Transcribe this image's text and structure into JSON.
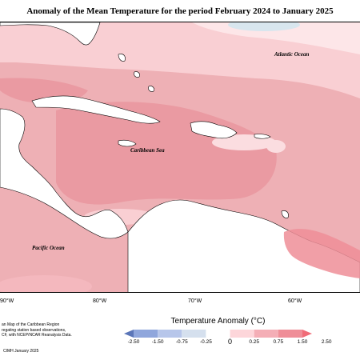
{
  "title": "Anomaly of the Mean Temperature for the period February 2024 to January 2025",
  "map": {
    "oceans": {
      "atlantic": "Atlantic Ocean",
      "caribbean": "Caribbean Sea",
      "pacific": "Pacific Ocean"
    },
    "longitudes": [
      "90°W",
      "80°W",
      "70°W",
      "60°W"
    ]
  },
  "legend": {
    "title": "Temperature Anomaly (°C)",
    "ticks": [
      "-2.50",
      "-1.50",
      "-0.75",
      "-0.25",
      "0",
      "0.25",
      "0.75",
      "1.50",
      "2.50"
    ],
    "colors": [
      "#5b76b8",
      "#8fa6dc",
      "#b7c6ea",
      "#d5e0ee",
      "#ffffff",
      "#fdd6da",
      "#f4aeb6",
      "#ef8e98",
      "#f06c78"
    ]
  },
  "footnote": {
    "lines": [
      "an Map of the Caribbean Region",
      "regating station based observations,",
      "CF, with NCEP/NCAR Reanalysis Data."
    ],
    "credit": "CIMH January 2025"
  }
}
